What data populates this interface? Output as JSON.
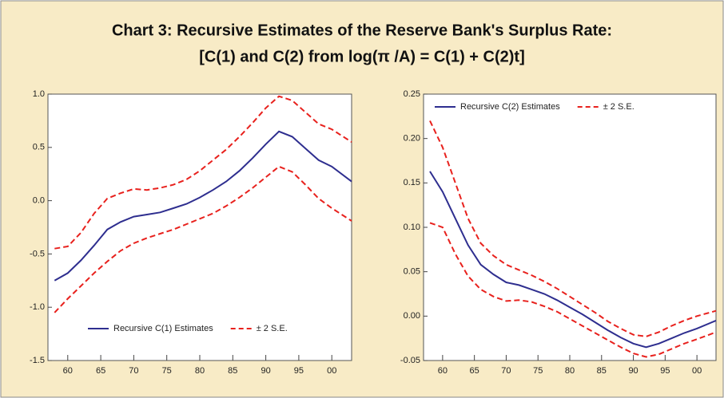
{
  "title": [
    "Chart 3: Recursive Estimates of the Reserve Bank's Surplus Rate:",
    "[C(1) and C(2) from log(π /A) = C(1) + C(2)t]"
  ],
  "chart_data": [
    {
      "type": "line",
      "legend": "lower center",
      "x": [
        58,
        60,
        62,
        64,
        66,
        68,
        70,
        72,
        74,
        76,
        78,
        80,
        82,
        84,
        86,
        88,
        90,
        92,
        94,
        96,
        98,
        100,
        103
      ],
      "xlim": [
        57,
        103
      ],
      "xticks": [
        60,
        65,
        70,
        75,
        80,
        85,
        90,
        95,
        {
          "value": 100,
          "label": "00"
        }
      ],
      "ylim": [
        -1.5,
        1.0
      ],
      "yticks": [
        {
          "value": 1.0,
          "label": "1.0"
        },
        0.5,
        {
          "value": 0,
          "label": "0.0"
        },
        -0.5,
        {
          "value": -1.0,
          "label": "-1.0"
        },
        -1.5
      ],
      "series": [
        {
          "name": "Recursive C(1) Estimates",
          "color": "#2e2e8f",
          "style": "solid",
          "values": [
            -0.75,
            -0.68,
            -0.56,
            -0.42,
            -0.27,
            -0.2,
            -0.15,
            -0.13,
            -0.11,
            -0.07,
            -0.03,
            0.03,
            0.1,
            0.18,
            0.28,
            0.4,
            0.53,
            0.65,
            0.6,
            0.49,
            0.38,
            0.32,
            0.18
          ]
        },
        {
          "name": "± 2 S.E.",
          "color": "#e8211d",
          "style": "dashed",
          "upper": [
            -0.45,
            -0.43,
            -0.3,
            -0.12,
            0.02,
            0.07,
            0.11,
            0.1,
            0.12,
            0.15,
            0.2,
            0.28,
            0.38,
            0.48,
            0.6,
            0.73,
            0.87,
            0.98,
            0.94,
            0.83,
            0.72,
            0.67,
            0.55
          ],
          "lower": [
            -1.05,
            -0.92,
            -0.8,
            -0.68,
            -0.57,
            -0.47,
            -0.4,
            -0.35,
            -0.31,
            -0.27,
            -0.22,
            -0.17,
            -0.12,
            -0.05,
            0.03,
            0.12,
            0.22,
            0.32,
            0.27,
            0.15,
            0.02,
            -0.07,
            -0.19
          ]
        }
      ]
    },
    {
      "type": "line",
      "legend": "upper left",
      "x": [
        58,
        60,
        62,
        64,
        66,
        68,
        70,
        72,
        74,
        76,
        78,
        80,
        82,
        84,
        86,
        88,
        90,
        92,
        94,
        96,
        98,
        100,
        103
      ],
      "xlim": [
        57,
        103
      ],
      "xticks": [
        60,
        65,
        70,
        75,
        80,
        85,
        90,
        95,
        {
          "value": 100,
          "label": "00"
        }
      ],
      "ylim": [
        -0.05,
        0.25
      ],
      "yticks": [
        0.25,
        {
          "value": 0.2,
          "label": "0.20"
        },
        0.15,
        {
          "value": 0.1,
          "label": "0.10"
        },
        0.05,
        {
          "value": 0,
          "label": "0.00"
        },
        -0.05
      ],
      "series": [
        {
          "name": "Recursive C(2) Estimates",
          "color": "#2e2e8f",
          "style": "solid",
          "values": [
            0.163,
            0.14,
            0.11,
            0.08,
            0.058,
            0.047,
            0.038,
            0.035,
            0.03,
            0.025,
            0.018,
            0.01,
            0.002,
            -0.007,
            -0.016,
            -0.024,
            -0.031,
            -0.035,
            -0.031,
            -0.025,
            -0.019,
            -0.014,
            -0.005
          ]
        },
        {
          "name": "± 2 S.E.",
          "color": "#e8211d",
          "style": "dashed",
          "upper": [
            0.22,
            0.19,
            0.15,
            0.11,
            0.082,
            0.068,
            0.058,
            0.052,
            0.046,
            0.039,
            0.031,
            0.022,
            0.013,
            0.004,
            -0.006,
            -0.014,
            -0.021,
            -0.023,
            -0.018,
            -0.011,
            -0.005,
            0,
            0.006
          ],
          "lower": [
            0.105,
            0.1,
            0.07,
            0.045,
            0.03,
            0.022,
            0.017,
            0.018,
            0.016,
            0.011,
            0.005,
            -0.003,
            -0.011,
            -0.019,
            -0.027,
            -0.035,
            -0.042,
            -0.046,
            -0.043,
            -0.037,
            -0.031,
            -0.026,
            -0.018
          ]
        }
      ]
    }
  ]
}
